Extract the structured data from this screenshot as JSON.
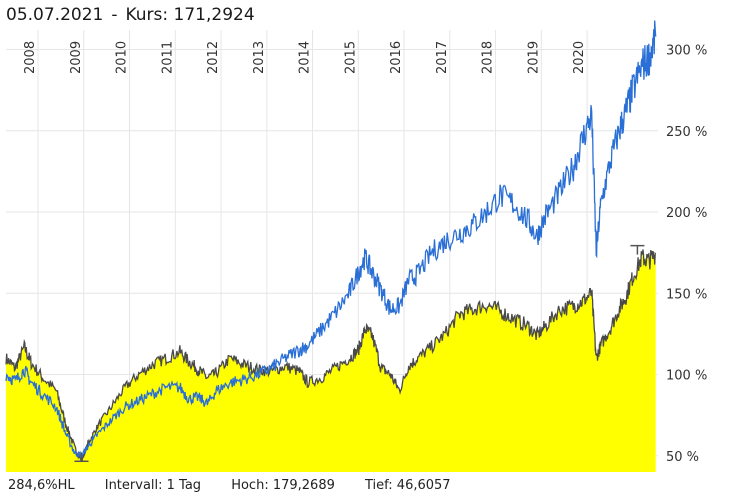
{
  "header": {
    "date": "05.07.2021",
    "separator": "-",
    "kurs_label": "Kurs: 171,2924"
  },
  "footer": {
    "performance": "284,6%HL",
    "interval": "Intervall: 1 Tag",
    "high": "Hoch: 179,2689",
    "low": "Tief: 46,6057"
  },
  "colors": {
    "area_fill": "#ffff00",
    "area_line": "#4a4a4a",
    "benchmark_line": "#2a6fd6",
    "grid": "#e6e6e6"
  },
  "chart_data": {
    "type": "area",
    "xlabel": "",
    "ylabel": "",
    "xlim": [
      2007.3,
      2021.55
    ],
    "ylim": [
      40,
      312
    ],
    "x_ticks": [
      "2008",
      "2009",
      "2010",
      "2011",
      "2012",
      "2013",
      "2014",
      "2015",
      "2016",
      "2017",
      "2018",
      "2019",
      "2020"
    ],
    "y_ticks": [
      {
        "value": 50,
        "label": "50 %"
      },
      {
        "value": 100,
        "label": "100 %"
      },
      {
        "value": 150,
        "label": "150 %"
      },
      {
        "value": 200,
        "label": "200 %"
      },
      {
        "value": 250,
        "label": "250 %"
      },
      {
        "value": 300,
        "label": "300 %"
      }
    ],
    "grid": true,
    "series": [
      {
        "kind": "area",
        "x": [
          2007.3,
          2007.5,
          2007.7,
          2007.85,
          2008.1,
          2008.4,
          2008.6,
          2008.8,
          2008.95,
          2009.1,
          2009.3,
          2009.6,
          2009.9,
          2010.2,
          2010.5,
          2010.8,
          2011.1,
          2011.3,
          2011.5,
          2011.7,
          2011.9,
          2012.2,
          2012.5,
          2012.8,
          2013.1,
          2013.4,
          2013.7,
          2013.9,
          2014.2,
          2014.5,
          2014.8,
          2015.0,
          2015.15,
          2015.3,
          2015.5,
          2015.7,
          2015.9,
          2016.1,
          2016.3,
          2016.6,
          2016.9,
          2017.2,
          2017.5,
          2017.8,
          2018.1,
          2018.4,
          2018.7,
          2018.9,
          2019.1,
          2019.4,
          2019.7,
          2019.9,
          2020.1,
          2020.2,
          2020.3,
          2020.5,
          2020.7,
          2020.85,
          2021.0,
          2021.2,
          2021.35,
          2021.5
        ],
        "values": [
          110,
          104,
          117,
          107,
          98,
          90,
          70,
          55,
          47,
          58,
          68,
          80,
          92,
          100,
          106,
          110,
          114,
          108,
          103,
          98,
          101,
          110,
          106,
          103,
          102,
          105,
          102,
          95,
          98,
          104,
          110,
          115,
          128,
          124,
          104,
          100,
          90,
          105,
          110,
          117,
          125,
          137,
          140,
          143,
          139,
          134,
          130,
          124,
          130,
          140,
          142,
          145,
          150,
          110,
          118,
          128,
          140,
          148,
          160,
          172,
          170,
          174
        ]
      },
      {
        "kind": "line",
        "x": [
          2007.3,
          2007.5,
          2007.7,
          2007.85,
          2008.1,
          2008.4,
          2008.6,
          2008.8,
          2008.95,
          2009.1,
          2009.3,
          2009.6,
          2009.9,
          2010.2,
          2010.5,
          2010.8,
          2011.1,
          2011.3,
          2011.5,
          2011.7,
          2011.9,
          2012.2,
          2012.5,
          2012.8,
          2013.1,
          2013.4,
          2013.7,
          2013.9,
          2014.2,
          2014.5,
          2014.8,
          2015.0,
          2015.15,
          2015.3,
          2015.5,
          2015.7,
          2015.9,
          2016.1,
          2016.3,
          2016.6,
          2016.9,
          2017.2,
          2017.5,
          2017.8,
          2018.1,
          2018.4,
          2018.7,
          2018.9,
          2019.1,
          2019.4,
          2019.7,
          2019.9,
          2020.1,
          2020.2,
          2020.3,
          2020.5,
          2020.7,
          2020.85,
          2021.0,
          2021.2,
          2021.35,
          2021.5
        ],
        "values": [
          100,
          96,
          103,
          95,
          88,
          80,
          64,
          52,
          50,
          56,
          63,
          72,
          80,
          84,
          88,
          92,
          92,
          85,
          86,
          82,
          90,
          95,
          97,
          100,
          104,
          110,
          115,
          118,
          128,
          138,
          150,
          163,
          172,
          163,
          152,
          140,
          142,
          158,
          162,
          175,
          182,
          187,
          192,
          200,
          210,
          205,
          195,
          185,
          198,
          212,
          228,
          245,
          260,
          175,
          205,
          230,
          250,
          262,
          275,
          290,
          295,
          308
        ]
      }
    ],
    "annotations": [
      {
        "kind": "low-marker",
        "x": 2008.95,
        "value": 46.6
      },
      {
        "kind": "high-marker",
        "x": 2021.1,
        "value": 179.3
      }
    ]
  }
}
